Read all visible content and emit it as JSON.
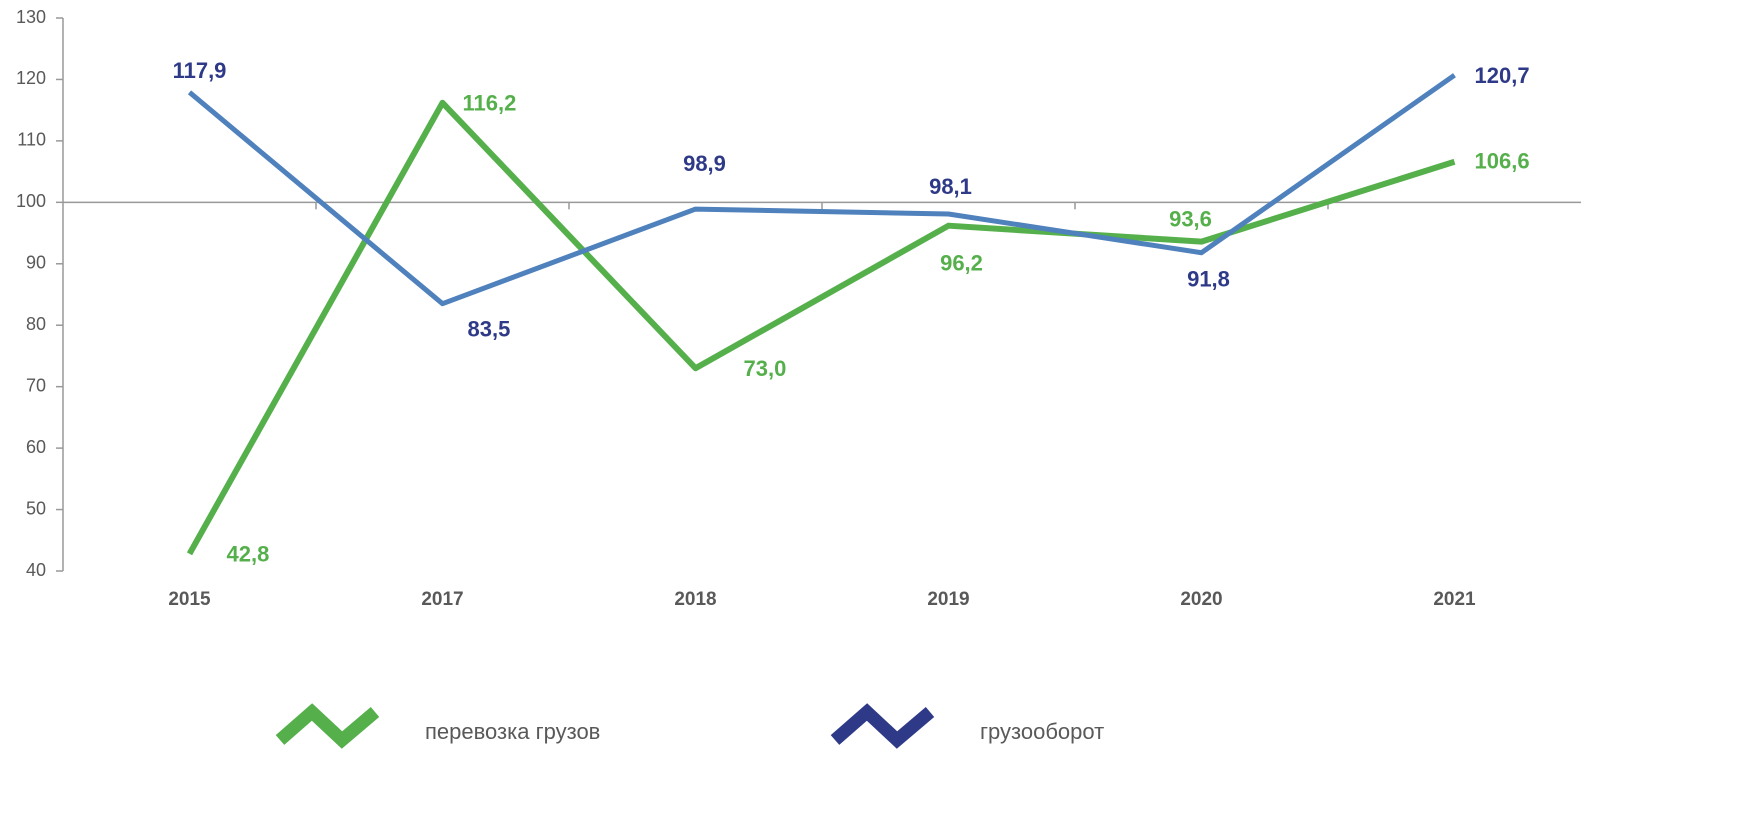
{
  "chart_data": {
    "type": "line",
    "categories": [
      "2015",
      "2017",
      "2018",
      "2019",
      "2020",
      "2021"
    ],
    "series": [
      {
        "name": "перевозка грузов",
        "color": "#55b04b",
        "values": [
          42.8,
          116.2,
          73.0,
          96.2,
          93.6,
          106.6
        ],
        "value_labels": [
          "42,8",
          "116,2",
          "73,0",
          "96,2",
          "93,6",
          "106,6"
        ]
      },
      {
        "name": "грузооборот",
        "color": "#4f81bd",
        "values": [
          117.9,
          83.5,
          98.9,
          98.1,
          91.8,
          120.7
        ],
        "value_labels": [
          "117,9",
          "83,5",
          "98,9",
          "98,1",
          "91,8",
          "120,7"
        ]
      }
    ],
    "ylim": [
      40,
      130
    ],
    "yticks": [
      40,
      50,
      60,
      70,
      80,
      90,
      100,
      110,
      120,
      130
    ],
    "x_axis_crosses": 100,
    "legend": "bottom"
  }
}
